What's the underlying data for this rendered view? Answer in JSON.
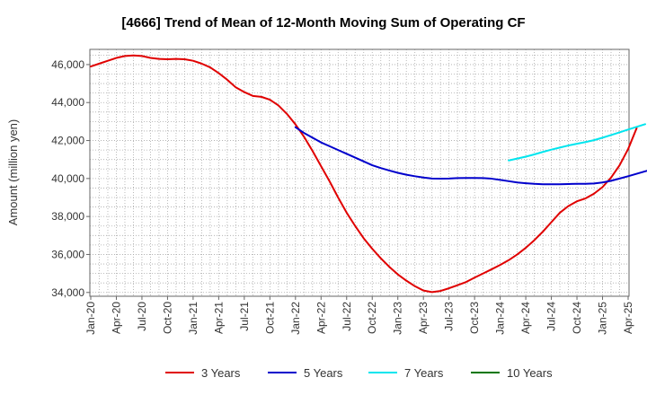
{
  "chart_data": {
    "type": "line",
    "title": "[4666]  Trend of Mean of 12-Month Moving Sum of Operating CF",
    "xlabel": "",
    "ylabel": "Amount (million yen)",
    "ylim": [
      33800,
      46800
    ],
    "yticks": [
      34000,
      36000,
      38000,
      40000,
      42000,
      44000,
      46000
    ],
    "ytick_labels": [
      "34,000",
      "36,000",
      "38,000",
      "40,000",
      "42,000",
      "44,000",
      "46,000"
    ],
    "xticks": [
      "Jan-20",
      "Apr-20",
      "Jul-20",
      "Oct-20",
      "Jan-21",
      "Apr-21",
      "Jul-21",
      "Oct-21",
      "Jan-22",
      "Apr-22",
      "Jul-22",
      "Oct-22",
      "Jan-23",
      "Apr-23",
      "Jul-23",
      "Oct-23",
      "Jan-24",
      "Apr-24",
      "Jul-24",
      "Oct-24",
      "Jan-25",
      "Apr-25"
    ],
    "x_unit": "month index from Jan-20",
    "grid": true,
    "legend_position": "bottom",
    "series": [
      {
        "name": "3 Years",
        "color": "#e00000",
        "points": [
          [
            0,
            45900
          ],
          [
            1,
            46050
          ],
          [
            2,
            46200
          ],
          [
            3,
            46350
          ],
          [
            4,
            46450
          ],
          [
            5,
            46480
          ],
          [
            6,
            46450
          ],
          [
            7,
            46350
          ],
          [
            8,
            46300
          ],
          [
            9,
            46280
          ],
          [
            10,
            46300
          ],
          [
            11,
            46280
          ],
          [
            12,
            46200
          ],
          [
            13,
            46050
          ],
          [
            14,
            45850
          ],
          [
            15,
            45550
          ],
          [
            16,
            45200
          ],
          [
            17,
            44800
          ],
          [
            18,
            44550
          ],
          [
            19,
            44350
          ],
          [
            20,
            44300
          ],
          [
            21,
            44150
          ],
          [
            22,
            43850
          ],
          [
            23,
            43400
          ],
          [
            24,
            42850
          ],
          [
            25,
            42200
          ],
          [
            26,
            41450
          ],
          [
            27,
            40650
          ],
          [
            28,
            39850
          ],
          [
            29,
            39000
          ],
          [
            30,
            38200
          ],
          [
            31,
            37500
          ],
          [
            32,
            36850
          ],
          [
            33,
            36300
          ],
          [
            34,
            35800
          ],
          [
            35,
            35350
          ],
          [
            36,
            34950
          ],
          [
            37,
            34620
          ],
          [
            38,
            34330
          ],
          [
            39,
            34100
          ],
          [
            40,
            34020
          ],
          [
            41,
            34080
          ],
          [
            42,
            34220
          ],
          [
            43,
            34380
          ],
          [
            44,
            34550
          ],
          [
            45,
            34780
          ],
          [
            46,
            35000
          ],
          [
            47,
            35220
          ],
          [
            48,
            35450
          ],
          [
            49,
            35700
          ],
          [
            50,
            36000
          ],
          [
            51,
            36350
          ],
          [
            52,
            36750
          ],
          [
            53,
            37200
          ],
          [
            54,
            37700
          ],
          [
            55,
            38200
          ],
          [
            56,
            38550
          ],
          [
            57,
            38800
          ],
          [
            58,
            38950
          ],
          [
            59,
            39200
          ],
          [
            60,
            39550
          ],
          [
            61,
            40050
          ],
          [
            62,
            40700
          ],
          [
            63,
            41550
          ],
          [
            64,
            42650
          ]
        ]
      },
      {
        "name": "5 Years",
        "color": "#0000cc",
        "points": [
          [
            24,
            42700
          ],
          [
            25,
            42400
          ],
          [
            26,
            42150
          ],
          [
            27,
            41900
          ],
          [
            28,
            41700
          ],
          [
            29,
            41500
          ],
          [
            30,
            41300
          ],
          [
            31,
            41100
          ],
          [
            32,
            40900
          ],
          [
            33,
            40700
          ],
          [
            34,
            40550
          ],
          [
            35,
            40420
          ],
          [
            36,
            40300
          ],
          [
            37,
            40200
          ],
          [
            38,
            40120
          ],
          [
            39,
            40050
          ],
          [
            40,
            40000
          ],
          [
            41,
            39990
          ],
          [
            42,
            40000
          ],
          [
            43,
            40020
          ],
          [
            44,
            40030
          ],
          [
            45,
            40030
          ],
          [
            46,
            40020
          ],
          [
            47,
            39990
          ],
          [
            48,
            39930
          ],
          [
            49,
            39860
          ],
          [
            50,
            39790
          ],
          [
            51,
            39750
          ],
          [
            52,
            39720
          ],
          [
            53,
            39700
          ],
          [
            54,
            39700
          ],
          [
            55,
            39700
          ],
          [
            56,
            39710
          ],
          [
            57,
            39720
          ],
          [
            58,
            39720
          ],
          [
            59,
            39740
          ],
          [
            60,
            39790
          ],
          [
            61,
            39880
          ],
          [
            62,
            40000
          ],
          [
            63,
            40120
          ],
          [
            64,
            40250
          ],
          [
            65,
            40380
          ],
          [
            66,
            40500
          ]
        ]
      },
      {
        "name": "7 Years",
        "color": "#00e5ee",
        "points": [
          [
            49,
            40950
          ],
          [
            50,
            41050
          ],
          [
            51,
            41150
          ],
          [
            52,
            41270
          ],
          [
            53,
            41400
          ],
          [
            54,
            41520
          ],
          [
            55,
            41630
          ],
          [
            56,
            41740
          ],
          [
            57,
            41830
          ],
          [
            58,
            41920
          ],
          [
            59,
            42020
          ],
          [
            60,
            42150
          ],
          [
            61,
            42290
          ],
          [
            62,
            42430
          ],
          [
            63,
            42580
          ],
          [
            64,
            42720
          ],
          [
            65,
            42860
          ]
        ]
      },
      {
        "name": "10 Years",
        "color": "#007700",
        "points": []
      }
    ]
  }
}
